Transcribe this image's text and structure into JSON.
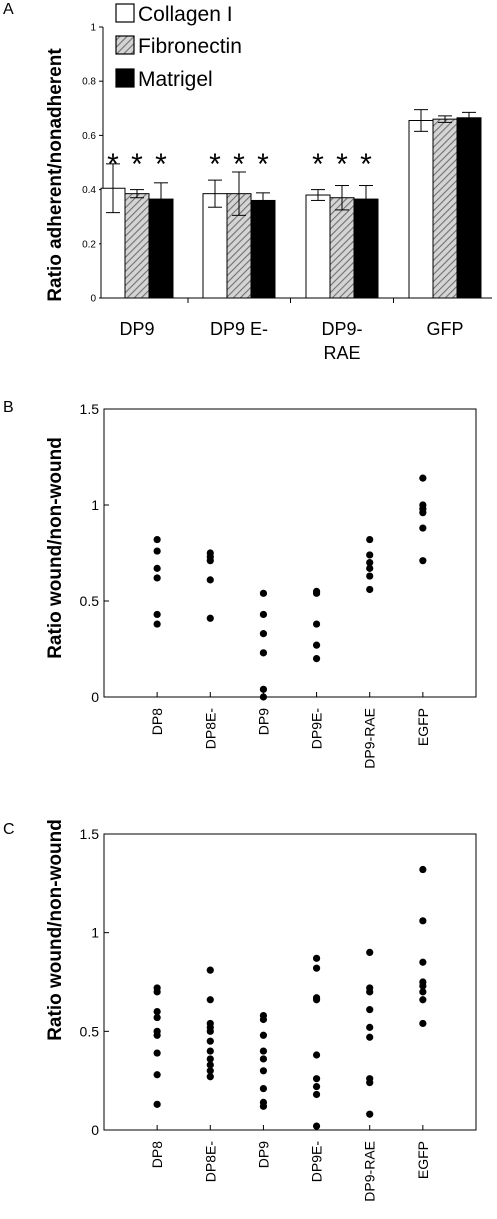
{
  "chart_data": [
    {
      "panel": "A",
      "type": "bar",
      "ylabel": "Ratio adherent/nonadherent",
      "ylim": [
        0,
        1
      ],
      "yticks": [
        "0",
        "0.2",
        "0.4",
        "0.6",
        "0.8",
        "1"
      ],
      "categories": [
        "DP9",
        "DP9 E-",
        "DP9-RAE",
        "GFP"
      ],
      "category_labels": [
        [
          "DP9"
        ],
        [
          "DP9 E-"
        ],
        [
          "DP9-",
          "RAE"
        ],
        [
          "GFP"
        ]
      ],
      "series": [
        {
          "name": "Collagen I",
          "color": "#ffffff",
          "values": [
            0.405,
            0.385,
            0.38,
            0.655
          ],
          "errors": [
            0.09,
            0.05,
            0.02,
            0.04
          ]
        },
        {
          "name": "Fibronectin",
          "color": "#aaaaaa",
          "values": [
            0.385,
            0.385,
            0.37,
            0.66
          ],
          "errors": [
            0.015,
            0.08,
            0.045,
            0.012
          ]
        },
        {
          "name": "Matrigel",
          "color": "#000000",
          "values": [
            0.365,
            0.36,
            0.365,
            0.665
          ],
          "errors": [
            0.06,
            0.028,
            0.05,
            0.02
          ]
        }
      ],
      "significance": [
        [
          "*",
          "*",
          "*"
        ],
        [
          "*",
          "*",
          "*"
        ],
        [
          "*",
          "*",
          "*"
        ],
        []
      ],
      "legend_position": "top-left"
    },
    {
      "panel": "B",
      "type": "scatter",
      "ylabel": "Ratio wound/non-wound",
      "ylim": [
        0,
        1.5
      ],
      "yticks": [
        "0",
        "0.5",
        "1",
        "1.5"
      ],
      "categories": [
        "DP8",
        "DP8E-",
        "DP9",
        "DP9E-",
        "DP9-RAE",
        "EGFP"
      ],
      "points": [
        [
          0.82,
          0.76,
          0.67,
          0.62,
          0.43,
          0.38
        ],
        [
          0.75,
          0.73,
          0.71,
          0.61,
          0.41
        ],
        [
          0.54,
          0.43,
          0.33,
          0.23,
          0.04,
          0.0
        ],
        [
          0.55,
          0.54,
          0.38,
          0.27,
          0.2
        ],
        [
          0.82,
          0.74,
          0.7,
          0.67,
          0.63,
          0.56
        ],
        [
          1.14,
          1.0,
          0.98,
          0.96,
          0.88,
          0.71
        ]
      ]
    },
    {
      "panel": "C",
      "type": "scatter",
      "ylabel": "Ratio wound/non-wound",
      "ylim": [
        0,
        1.5
      ],
      "yticks": [
        "0",
        "0.5",
        "1",
        "1.5"
      ],
      "categories": [
        "DP8",
        "DP8E-",
        "DP9",
        "DP9E-",
        "DP9-RAE",
        "EGFP"
      ],
      "points": [
        [
          0.72,
          0.7,
          0.6,
          0.57,
          0.5,
          0.48,
          0.39,
          0.28,
          0.13
        ],
        [
          0.81,
          0.66,
          0.54,
          0.52,
          0.5,
          0.45,
          0.4,
          0.36,
          0.33,
          0.3,
          0.27
        ],
        [
          0.58,
          0.56,
          0.48,
          0.4,
          0.36,
          0.3,
          0.21,
          0.14,
          0.12
        ],
        [
          0.87,
          0.82,
          0.67,
          0.66,
          0.38,
          0.26,
          0.22,
          0.18,
          0.02
        ],
        [
          0.9,
          0.72,
          0.7,
          0.61,
          0.52,
          0.47,
          0.26,
          0.24,
          0.08
        ],
        [
          1.32,
          1.06,
          0.85,
          0.75,
          0.73,
          0.7,
          0.66,
          0.54
        ]
      ]
    }
  ],
  "panel_labels": [
    "A",
    "B",
    "C"
  ]
}
